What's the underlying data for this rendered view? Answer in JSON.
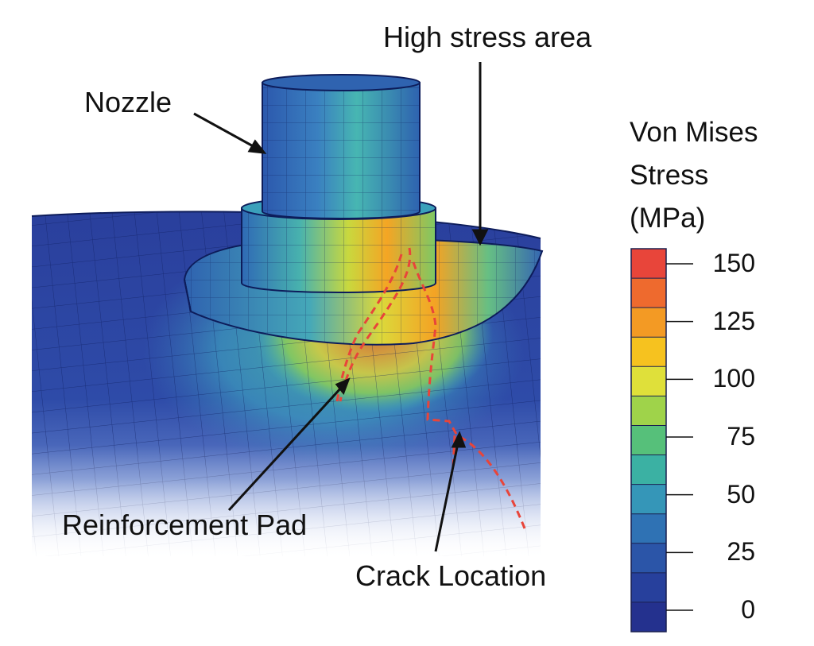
{
  "labels": {
    "nozzle": "Nozzle",
    "high_stress": "High stress area",
    "reinforcement_pad": "Reinforcement Pad",
    "crack_location": "Crack Location"
  },
  "legend": {
    "title_lines": [
      "Von Mises",
      "Stress",
      "(MPa)"
    ],
    "ticks": [
      "150",
      "125",
      "100",
      "75",
      "50",
      "25",
      "0"
    ],
    "tick_values": [
      150,
      125,
      100,
      75,
      50,
      25,
      0
    ],
    "colors": [
      "#e8453a",
      "#ee6a2e",
      "#f39a24",
      "#f6c21f",
      "#dfe03a",
      "#9fd34a",
      "#56c07a",
      "#3bb1a3",
      "#3596b8",
      "#2f72b4",
      "#2b55a8",
      "#27409c",
      "#24318e"
    ]
  },
  "colors": {
    "low": "#27409c",
    "mid": "#45b6b0",
    "high": "#f39a24",
    "peak": "#e8453a",
    "crack_line": "#e8453a",
    "mesh_line": "#0d1c5a"
  }
}
